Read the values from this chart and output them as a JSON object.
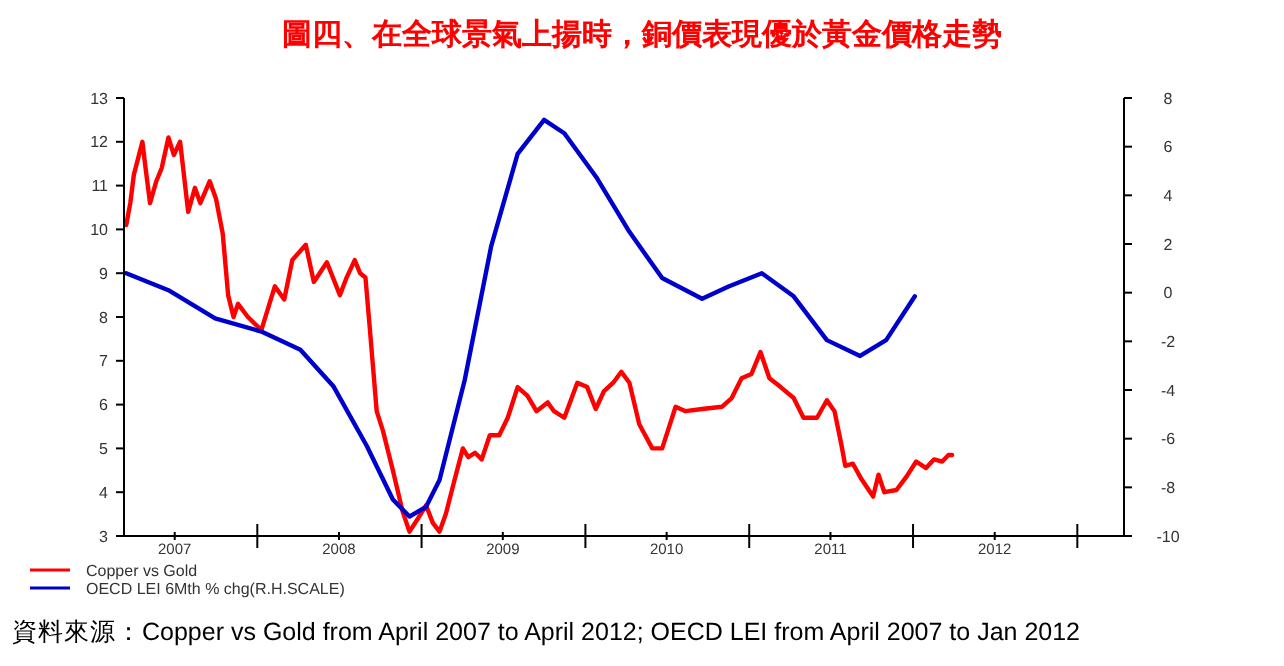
{
  "chart_data": {
    "type": "line",
    "title": "圖四、在全球景氣上揚時，銅價表現優於黃金價格走勢",
    "annotations": [
      "資料來源：Copper vs Gold from April 2007 to April 2012; OECD LEI from April 2007 to Jan 2012"
    ],
    "xlim": [
      "2007-03-10",
      "2013-04-15"
    ],
    "xticks": [
      {
        "value": "2007-07-01",
        "label": "2007"
      },
      {
        "value": "2008-01-01",
        "label": null
      },
      {
        "value": "2008-07-01",
        "label": "2008"
      },
      {
        "value": "2009-01-01",
        "label": null
      },
      {
        "value": "2009-07-01",
        "label": "2009"
      },
      {
        "value": "2010-01-01",
        "label": null
      },
      {
        "value": "2010-07-01",
        "label": "2010"
      },
      {
        "value": "2011-01-01",
        "label": null
      },
      {
        "value": "2011-07-01",
        "label": "2011"
      },
      {
        "value": "2012-01-01",
        "label": null
      },
      {
        "value": "2012-07-01",
        "label": "2012"
      },
      {
        "value": "2013-01-01",
        "label": null
      }
    ],
    "ylim": [
      3,
      13
    ],
    "yticks": [
      3,
      4,
      5,
      6,
      7,
      8,
      9,
      10,
      11,
      12,
      13
    ],
    "y2lim": [
      -10,
      8
    ],
    "y2ticks": [
      -10,
      -8,
      -6,
      -4,
      -2,
      0,
      2,
      4,
      6,
      8
    ],
    "grid": false,
    "legend": "bottom left",
    "line_style": "solid",
    "marker": "none",
    "series": [
      {
        "name": "Copper vs Gold",
        "color": "#ff0000",
        "x": [
          "2007-03-15",
          "2007-03-24",
          "2007-04-01",
          "2007-04-20",
          "2007-04-27",
          "2007-05-07",
          "2007-05-21",
          "2007-06-02",
          "2007-06-17",
          "2007-06-29",
          "2007-07-13",
          "2007-07-31",
          "2007-08-15",
          "2007-08-27",
          "2007-09-17",
          "2007-10-01",
          "2007-10-16",
          "2007-10-28",
          "2007-11-09",
          "2007-11-19",
          "2007-12-11",
          "2008-01-10",
          "2008-02-09",
          "2008-03-01",
          "2008-03-19",
          "2008-04-18",
          "2008-05-06",
          "2008-06-04",
          "2008-07-03",
          "2008-07-18",
          "2008-08-05",
          "2008-08-17",
          "2008-08-29",
          "2008-09-08",
          "2008-09-23",
          "2008-10-07",
          "2008-10-29",
          "2008-11-20",
          "2008-12-05",
          "2008-12-24",
          "2009-01-11",
          "2009-01-26",
          "2009-02-10",
          "2009-02-24",
          "2009-03-16",
          "2009-04-03",
          "2009-04-15",
          "2009-04-30",
          "2009-05-15",
          "2009-06-02",
          "2009-06-23",
          "2009-07-12",
          "2009-08-03",
          "2009-08-25",
          "2009-09-14",
          "2009-10-09",
          "2009-10-23",
          "2009-11-15",
          "2009-12-14",
          "2010-01-05",
          "2010-01-24",
          "2010-02-11",
          "2010-03-04",
          "2010-03-22",
          "2010-04-09",
          "2010-05-01",
          "2010-05-30",
          "2010-06-21",
          "2010-07-21",
          "2010-08-12",
          "2010-09-18",
          "2010-11-01",
          "2010-11-23",
          "2010-12-15",
          "2011-01-06",
          "2011-01-26",
          "2011-02-15",
          "2011-03-12",
          "2011-04-10",
          "2011-05-02",
          "2011-06-01",
          "2011-06-23",
          "2011-07-10",
          "2011-07-25",
          "2011-08-03",
          "2011-08-20",
          "2011-09-08",
          "2011-10-04",
          "2011-10-16",
          "2011-10-29",
          "2011-11-25",
          "2011-12-17",
          "2012-01-08",
          "2012-01-30",
          "2012-02-17",
          "2012-03-06",
          "2012-03-20",
          "2012-03-28"
        ],
        "values": [
          10.1,
          10.6,
          11.25,
          12.0,
          11.4,
          10.6,
          11.1,
          11.4,
          12.1,
          11.7,
          12.0,
          10.4,
          10.95,
          10.6,
          11.1,
          10.7,
          9.9,
          8.5,
          8.0,
          8.3,
          8.0,
          7.7,
          8.7,
          8.4,
          9.3,
          9.65,
          8.8,
          9.25,
          8.5,
          8.9,
          9.3,
          9.0,
          8.9,
          7.7,
          5.85,
          5.4,
          4.5,
          3.55,
          3.1,
          3.4,
          3.7,
          3.3,
          3.1,
          3.5,
          4.3,
          5.0,
          4.8,
          4.9,
          4.75,
          5.3,
          5.3,
          5.7,
          6.4,
          6.2,
          5.85,
          6.05,
          5.85,
          5.7,
          6.5,
          6.4,
          5.9,
          6.3,
          6.5,
          6.75,
          6.5,
          5.55,
          5.0,
          5.0,
          5.95,
          5.85,
          5.9,
          5.95,
          6.15,
          6.6,
          6.7,
          7.2,
          6.6,
          6.4,
          6.15,
          5.7,
          5.7,
          6.1,
          5.85,
          5.1,
          4.6,
          4.65,
          4.3,
          3.9,
          4.4,
          4.0,
          4.05,
          4.35,
          4.7,
          4.55,
          4.75,
          4.7,
          4.85,
          4.85
        ]
      },
      {
        "name": "OECD LEI 6Mth % chg(R.H.SCALE)",
        "color": "#0000cc",
        "axis": "y2",
        "x": [
          "2007-03-15",
          "2007-06-17",
          "2007-09-29",
          "2008-01-10",
          "2008-04-06",
          "2008-06-19",
          "2008-09-01",
          "2008-10-29",
          "2008-12-05",
          "2009-01-11",
          "2009-02-10",
          "2009-04-07",
          "2009-06-05",
          "2009-08-03",
          "2009-10-01",
          "2009-11-15",
          "2010-01-27",
          "2010-04-09",
          "2010-06-21",
          "2010-09-18",
          "2010-11-16",
          "2011-01-29",
          "2011-04-10",
          "2011-06-23",
          "2011-09-05",
          "2011-11-02",
          "2012-01-05"
        ],
        "values": [
          0.8,
          0.1,
          -1.06,
          -1.6,
          -2.35,
          -3.86,
          -6.3,
          -8.5,
          -9.2,
          -8.8,
          -7.7,
          -3.6,
          1.9,
          5.7,
          7.1,
          6.55,
          4.7,
          2.5,
          0.6,
          -0.25,
          0.25,
          0.8,
          -0.15,
          -1.95,
          -2.6,
          -1.95,
          -0.15
        ]
      }
    ]
  }
}
